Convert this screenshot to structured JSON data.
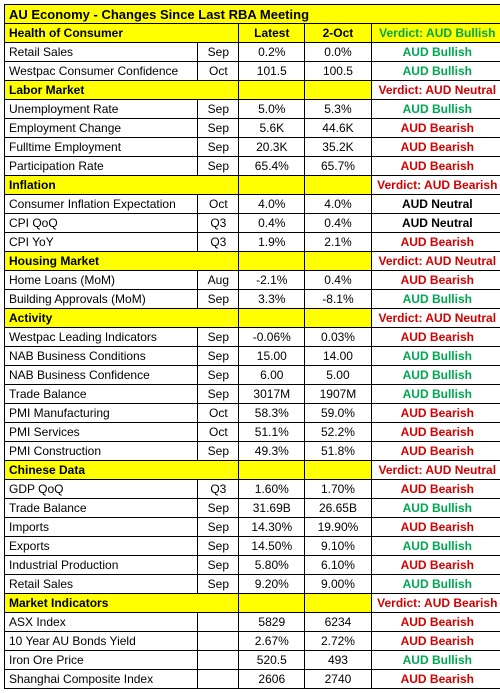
{
  "title": "AU Economy - Changes Since Last RBA Meeting",
  "headers": {
    "latest": "Latest",
    "oct": "2-Oct"
  },
  "verdict_prefix": "Verdict: ",
  "sections": [
    {
      "name": "Health of Consumer",
      "verdict_text": "AUD Bullish",
      "verdict_class": "bullish",
      "rows": [
        {
          "label": "Retail Sales",
          "period": "Sep",
          "latest": "0.2%",
          "oct": "0.0%",
          "vtext": "AUD Bullish",
          "vclass": "bullish"
        },
        {
          "label": "Westpac Consumer Confidence",
          "period": "Oct",
          "latest": "101.5",
          "oct": "100.5",
          "vtext": "AUD Bullish",
          "vclass": "bullish"
        }
      ]
    },
    {
      "name": "Labor Market",
      "verdict_text": "AUD Neutral",
      "verdict_class": "bearish",
      "rows": [
        {
          "label": "Unemployment Rate",
          "period": "Sep",
          "latest": "5.0%",
          "oct": "5.3%",
          "vtext": "AUD Bullish",
          "vclass": "bullish"
        },
        {
          "label": "Employment Change",
          "period": "Sep",
          "latest": "5.6K",
          "oct": "44.6K",
          "vtext": "AUD Bearish",
          "vclass": "bearish"
        },
        {
          "label": "Fulltime Employment",
          "period": "Sep",
          "latest": "20.3K",
          "oct": "35.2K",
          "vtext": "AUD Bearish",
          "vclass": "bearish"
        },
        {
          "label": "Participation Rate",
          "period": "Sep",
          "latest": "65.4%",
          "oct": "65.7%",
          "vtext": "AUD Bearish",
          "vclass": "bearish"
        }
      ]
    },
    {
      "name": "Inflation",
      "verdict_text": "AUD Bearish",
      "verdict_class": "bearish",
      "rows": [
        {
          "label": "Consumer Inflation Expectation",
          "period": "Oct",
          "latest": "4.0%",
          "oct": "4.0%",
          "vtext": "AUD Neutral",
          "vclass": "neutral"
        },
        {
          "label": "CPI QoQ",
          "period": "Q3",
          "latest": "0.4%",
          "oct": "0.4%",
          "vtext": "AUD Neutral",
          "vclass": "neutral"
        },
        {
          "label": "CPI YoY",
          "period": "Q3",
          "latest": "1.9%",
          "oct": "2.1%",
          "vtext": "AUD Bearish",
          "vclass": "bearish"
        }
      ]
    },
    {
      "name": "Housing Market",
      "verdict_text": "AUD Neutral",
      "verdict_class": "bearish",
      "rows": [
        {
          "label": "Home Loans (MoM)",
          "period": "Aug",
          "latest": "-2.1%",
          "oct": "0.4%",
          "vtext": "AUD Bearish",
          "vclass": "bearish"
        },
        {
          "label": "Building Approvals (MoM)",
          "period": "Sep",
          "latest": "3.3%",
          "oct": "-8.1%",
          "vtext": "AUD Bullish",
          "vclass": "bullish"
        }
      ]
    },
    {
      "name": "Activity",
      "verdict_text": "AUD Neutral",
      "verdict_class": "bearish",
      "rows": [
        {
          "label": "Westpac Leading Indicators",
          "period": "Sep",
          "latest": "-0.06%",
          "oct": "0.03%",
          "vtext": "AUD Bearish",
          "vclass": "bearish"
        },
        {
          "label": "NAB Business Conditions",
          "period": "Sep",
          "latest": "15.00",
          "oct": "14.00",
          "vtext": "AUD Bullish",
          "vclass": "bullish"
        },
        {
          "label": "NAB Business Confidence",
          "period": "Sep",
          "latest": "6.00",
          "oct": "5.00",
          "vtext": "AUD Bullish",
          "vclass": "bullish"
        },
        {
          "label": "Trade Balance",
          "period": "Sep",
          "latest": "3017M",
          "oct": "1907M",
          "vtext": "AUD Bullish",
          "vclass": "bullish"
        },
        {
          "label": "PMI Manufacturing",
          "period": "Oct",
          "latest": "58.3%",
          "oct": "59.0%",
          "vtext": "AUD Bearish",
          "vclass": "bearish"
        },
        {
          "label": "PMI Services",
          "period": "Oct",
          "latest": "51.1%",
          "oct": "52.2%",
          "vtext": "AUD Bearish",
          "vclass": "bearish"
        },
        {
          "label": "PMI Construction",
          "period": "Sep",
          "latest": "49.3%",
          "oct": "51.8%",
          "vtext": "AUD Bearish",
          "vclass": "bearish"
        }
      ]
    },
    {
      "name": "Chinese Data",
      "verdict_text": "AUD Neutral",
      "verdict_class": "bearish",
      "rows": [
        {
          "label": "GDP QoQ",
          "period": "Q3",
          "latest": "1.60%",
          "oct": "1.70%",
          "vtext": "AUD Bearish",
          "vclass": "bearish"
        },
        {
          "label": "Trade Balance",
          "period": "Sep",
          "latest": "31.69B",
          "oct": "26.65B",
          "vtext": "AUD Bullish",
          "vclass": "bullish"
        },
        {
          "label": "Imports",
          "period": "Sep",
          "latest": "14.30%",
          "oct": "19.90%",
          "vtext": "AUD Bearish",
          "vclass": "bearish"
        },
        {
          "label": "Exports",
          "period": "Sep",
          "latest": "14.50%",
          "oct": "9.10%",
          "vtext": "AUD Bullish",
          "vclass": "bullish"
        },
        {
          "label": "Industrial Production",
          "period": "Sep",
          "latest": "5.80%",
          "oct": "6.10%",
          "vtext": "AUD Bearish",
          "vclass": "bearish"
        },
        {
          "label": "Retail Sales",
          "period": "Sep",
          "latest": "9.20%",
          "oct": "9.00%",
          "vtext": "AUD Bullish",
          "vclass": "bullish"
        }
      ]
    },
    {
      "name": "Market Indicators",
      "verdict_text": "AUD Bearish",
      "verdict_class": "bearish",
      "rows": [
        {
          "label": "ASX Index",
          "period": "",
          "latest": "5829",
          "oct": "6234",
          "vtext": "AUD Bearish",
          "vclass": "bearish"
        },
        {
          "label": "10 Year AU Bonds Yield",
          "period": "",
          "latest": "2.67%",
          "oct": "2.72%",
          "vtext": "AUD Bearish",
          "vclass": "bearish"
        },
        {
          "label": "Iron Ore Price",
          "period": "",
          "latest": "520.5",
          "oct": "493",
          "vtext": "AUD Bullish",
          "vclass": "bullish"
        },
        {
          "label": "Shanghai Composite Index",
          "period": "",
          "latest": "2606",
          "oct": "2740",
          "vtext": "AUD Bearish",
          "vclass": "bearish"
        }
      ]
    }
  ]
}
